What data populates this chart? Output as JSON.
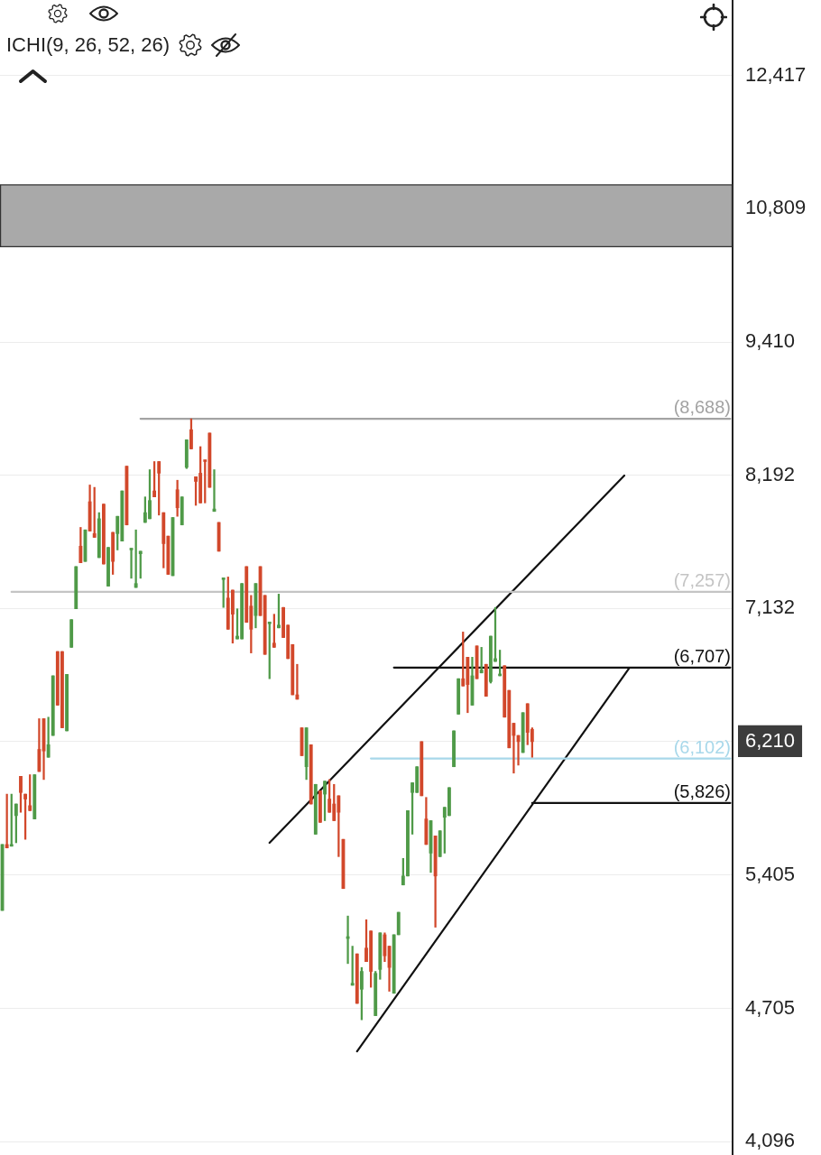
{
  "chart_data": {
    "type": "candlestick",
    "log": true,
    "grid": "y",
    "tick_labels": "y",
    "marker": "none",
    "annotations": [
      "ICHI(9, 26, 52, 26)"
    ],
    "categories": [
      null,
      null,
      null,
      null,
      null,
      null,
      null,
      null,
      null,
      null,
      null,
      null,
      null,
      null,
      null,
      null,
      null,
      null,
      null,
      null,
      null,
      null,
      null,
      null,
      null,
      null,
      null,
      null,
      null,
      null,
      null,
      null,
      null,
      null,
      null,
      null,
      null,
      null,
      null,
      null,
      null,
      null,
      null,
      null,
      null,
      null,
      null,
      null,
      null,
      null,
      null,
      null,
      null,
      null,
      null,
      null,
      null,
      null,
      null,
      null,
      null,
      null,
      null,
      null,
      null,
      null,
      null,
      null,
      null,
      null,
      null,
      null,
      null,
      null,
      null,
      null,
      null,
      null,
      null,
      null,
      null,
      null,
      null,
      null,
      null,
      null,
      null,
      null,
      null,
      null,
      null,
      null,
      null,
      null,
      null,
      null,
      null,
      null,
      null,
      null,
      null,
      null,
      null,
      null,
      null,
      null,
      null,
      null,
      null,
      null,
      null,
      null,
      null,
      null,
      null,
      null,
      null,
      null,
      null,
      null,
      null,
      null,
      null,
      null,
      null,
      null,
      null,
      null,
      null,
      null,
      null,
      null,
      null,
      null,
      null,
      null,
      null,
      null,
      null,
      null,
      null,
      null,
      null,
      null,
      null,
      null,
      null,
      null,
      null,
      null,
      null,
      null,
      null,
      null,
      null,
      null,
      null,
      null,
      null
    ],
    "ohlc": [
      [
        5210,
        5580,
        5210,
        5580
      ],
      [
        5580,
        5880,
        5560,
        5560
      ],
      [
        5570,
        5880,
        5570,
        5580
      ],
      [
        5750,
        5820,
        5590,
        5820
      ],
      [
        5990,
        5990,
        5770,
        5890
      ],
      [
        5880,
        5880,
        5610,
        5850
      ],
      [
        5810,
        6000,
        5780,
        5780
      ],
      [
        5730,
        6000,
        5730,
        6000
      ],
      [
        6160,
        6360,
        6020,
        6020
      ],
      [
        6360,
        6360,
        5970,
        6150
      ],
      [
        6110,
        6370,
        6110,
        6190
      ],
      [
        6250,
        6650,
        6250,
        6650
      ],
      [
        6820,
        6820,
        6450,
        6450
      ],
      [
        6820,
        6820,
        6300,
        6300
      ],
      [
        6280,
        6660,
        6280,
        6660
      ],
      [
        6850,
        7050,
        6850,
        7050
      ],
      [
        7130,
        7450,
        7130,
        7450
      ],
      [
        7610,
        7760,
        7480,
        7480
      ],
      [
        7490,
        7740,
        7490,
        7740
      ],
      [
        7970,
        8110,
        7730,
        7730
      ],
      [
        7710,
        8090,
        7680,
        7680
      ],
      [
        7520,
        7880,
        7520,
        7830
      ],
      [
        7950,
        7950,
        7470,
        7470
      ],
      [
        7300,
        7600,
        7300,
        7600
      ],
      [
        7720,
        7720,
        7390,
        7490
      ],
      [
        7710,
        7850,
        7580,
        7850
      ],
      [
        7650,
        8060,
        7650,
        8060
      ],
      [
        8270,
        8270,
        7780,
        7780
      ],
      [
        7580,
        7590,
        7360,
        7590
      ],
      [
        7290,
        7740,
        7290,
        7320
      ],
      [
        7550,
        7570,
        7360,
        7570
      ],
      [
        7800,
        8010,
        7800,
        7880
      ],
      [
        7830,
        8240,
        7830,
        7980
      ],
      [
        8060,
        8310,
        8010,
        8010
      ],
      [
        8310,
        8310,
        7860,
        8210
      ],
      [
        7880,
        7880,
        7440,
        7630
      ],
      [
        7690,
        7690,
        7390,
        7390
      ],
      [
        7380,
        7840,
        7380,
        7840
      ],
      [
        8070,
        8150,
        7850,
        7920
      ],
      [
        7780,
        8010,
        7780,
        8010
      ],
      [
        8260,
        8500,
        8250,
        8500
      ],
      [
        8590,
        8688,
        8420,
        8420
      ],
      [
        8180,
        8180,
        7940,
        8140
      ],
      [
        8210,
        8440,
        7960,
        7960
      ],
      [
        8320,
        8320,
        7960,
        8310
      ],
      [
        8560,
        8560,
        8090,
        8090
      ],
      [
        7890,
        8240,
        7890,
        7910
      ],
      [
        7800,
        7800,
        7570,
        7570
      ],
      [
        7350,
        7360,
        7140,
        7360
      ],
      [
        7210,
        7370,
        6980,
        6980
      ],
      [
        7270,
        7270,
        6880,
        7090
      ],
      [
        6910,
        7130,
        6910,
        6930
      ],
      [
        6910,
        7320,
        6910,
        7320
      ],
      [
        7450,
        7450,
        7030,
        7030
      ],
      [
        7150,
        7230,
        6810,
        6980
      ],
      [
        7080,
        7320,
        6990,
        7320
      ],
      [
        7450,
        7450,
        7080,
        7080
      ],
      [
        7230,
        7230,
        6800,
        6800
      ],
      [
        7020,
        7030,
        6630,
        7030
      ],
      [
        6880,
        7090,
        6850,
        6850
      ],
      [
        6990,
        7240,
        6990,
        7010
      ],
      [
        7140,
        7140,
        6920,
        6920
      ],
      [
        7010,
        7010,
        6770,
        6770
      ],
      [
        6870,
        6870,
        6520,
        6520
      ],
      [
        6520,
        6730,
        6490,
        6490
      ],
      [
        6300,
        6300,
        6120,
        6120
      ],
      [
        6050,
        6300,
        5970,
        6300
      ],
      [
        6190,
        6190,
        5820,
        5820
      ],
      [
        5640,
        5940,
        5640,
        5940
      ],
      [
        5900,
        5900,
        5710,
        5710
      ],
      [
        5880,
        5960,
        5720,
        5960
      ],
      [
        5850,
        5970,
        5770,
        5770
      ],
      [
        5820,
        5940,
        5720,
        5720
      ],
      [
        5870,
        5870,
        5510,
        5770
      ],
      [
        5610,
        5610,
        5330,
        5330
      ],
      [
        5060,
        5180,
        4930,
        5070
      ],
      [
        4820,
        5020,
        4820,
        4830
      ],
      [
        4980,
        4980,
        4730,
        4730
      ],
      [
        4800,
        4910,
        4650,
        4890
      ],
      [
        5010,
        5160,
        4940,
        4940
      ],
      [
        5100,
        5100,
        4810,
        4890
      ],
      [
        4670,
        4890,
        4670,
        4880
      ],
      [
        4900,
        5090,
        4850,
        5090
      ],
      [
        5080,
        5090,
        4940,
        4970
      ],
      [
        5020,
        5020,
        4790,
        4910
      ],
      [
        4780,
        5080,
        4780,
        5080
      ],
      [
        5080,
        5200,
        5080,
        5200
      ],
      [
        5350,
        5500,
        5350,
        5400
      ],
      [
        5400,
        5780,
        5400,
        5780
      ],
      [
        5890,
        5950,
        5640,
        5950
      ],
      [
        5890,
        6050,
        5890,
        6050
      ],
      [
        6210,
        6210,
        5870,
        5870
      ],
      [
        5730,
        5860,
        5580,
        5580
      ],
      [
        5530,
        5720,
        5420,
        5720
      ],
      [
        5630,
        5630,
        5120,
        5400
      ],
      [
        5510,
        5660,
        5510,
        5660
      ],
      [
        5740,
        5800,
        5530,
        5800
      ],
      [
        5750,
        5920,
        5750,
        5920
      ],
      [
        6050,
        6280,
        6050,
        6280
      ],
      [
        6390,
        6630,
        6390,
        6630
      ],
      [
        6630,
        6960,
        6580,
        6580
      ],
      [
        6780,
        6780,
        6400,
        6590
      ],
      [
        6450,
        6780,
        6450,
        6650
      ],
      [
        6860,
        6860,
        6630,
        6630
      ],
      [
        6670,
        6850,
        6670,
        6690
      ],
      [
        6730,
        6730,
        6510,
        6510
      ],
      [
        6610,
        6930,
        6600,
        6930
      ],
      [
        6750,
        7140,
        6750,
        6770
      ],
      [
        6650,
        6830,
        6650,
        6660
      ],
      [
        6720,
        6720,
        6370,
        6370
      ],
      [
        6550,
        6550,
        6170,
        6170
      ],
      [
        6330,
        6330,
        6010,
        6250
      ],
      [
        6250,
        6250,
        6060,
        6210
      ],
      [
        6140,
        6400,
        6140,
        6400
      ],
      [
        6460,
        6460,
        6190,
        6270
      ],
      [
        6290,
        6300,
        6110,
        6210
      ],
      null,
      null,
      null,
      null,
      null,
      null,
      null,
      null,
      null,
      null,
      null,
      null,
      null,
      null,
      null,
      null,
      null,
      null,
      null,
      null,
      null,
      null,
      null,
      null,
      null,
      null,
      null,
      null,
      null,
      null,
      null,
      null,
      null,
      null,
      null,
      null,
      null,
      null,
      null,
      null,
      null,
      null,
      null
    ],
    "colors": [
      "#4f9a48",
      "#d2482b",
      "#4f9a48",
      "#4f9a48",
      "#d2482b",
      "#d2482b",
      "#d2482b",
      "#4f9a48",
      "#d2482b",
      "#d2482b",
      "#4f9a48",
      "#4f9a48",
      "#d2482b",
      "#d2482b",
      "#4f9a48",
      "#4f9a48",
      "#4f9a48",
      "#d2482b",
      "#4f9a48",
      "#d2482b",
      "#d2482b",
      "#4f9a48",
      "#d2482b",
      "#4f9a48",
      "#d2482b",
      "#4f9a48",
      "#4f9a48",
      "#d2482b",
      "#4f9a48",
      "#4f9a48",
      "#4f9a48",
      "#4f9a48",
      "#4f9a48",
      "#d2482b",
      "#d2482b",
      "#d2482b",
      "#d2482b",
      "#4f9a48",
      "#d2482b",
      "#4f9a48",
      "#4f9a48",
      "#d2482b",
      "#d2482b",
      "#d2482b",
      "#d2482b",
      "#d2482b",
      "#4f9a48",
      "#d2482b",
      "#4f9a48",
      "#d2482b",
      "#d2482b",
      "#4f9a48",
      "#4f9a48",
      "#d2482b",
      "#d2482b",
      "#4f9a48",
      "#d2482b",
      "#d2482b",
      "#4f9a48",
      "#d2482b",
      "#4f9a48",
      "#d2482b",
      "#d2482b",
      "#d2482b",
      "#d2482b",
      "#d2482b",
      "#4f9a48",
      "#d2482b",
      "#4f9a48",
      "#d2482b",
      "#4f9a48",
      "#d2482b",
      "#d2482b",
      "#d2482b",
      "#d2482b",
      "#4f9a48",
      "#4f9a48",
      "#d2482b",
      "#4f9a48",
      "#d2482b",
      "#d2482b",
      "#4f9a48",
      "#4f9a48",
      "#d2482b",
      "#d2482b",
      "#4f9a48",
      "#4f9a48",
      "#4f9a48",
      "#4f9a48",
      "#4f9a48",
      "#4f9a48",
      "#d2482b",
      "#d2482b",
      "#4f9a48",
      "#d2482b",
      "#4f9a48",
      "#4f9a48",
      "#4f9a48",
      "#4f9a48",
      "#4f9a48",
      "#d2482b",
      "#d2482b",
      "#4f9a48",
      "#d2482b",
      "#4f9a48",
      "#d2482b",
      "#4f9a48",
      "#4f9a48",
      "#4f9a48",
      "#d2482b",
      "#d2482b",
      "#d2482b",
      "#d2482b",
      "#4f9a48",
      "#d2482b",
      "#d2482b",
      null,
      null,
      null,
      null,
      null,
      null,
      null,
      null,
      null,
      null,
      null,
      null,
      null,
      null,
      null,
      null,
      null,
      null,
      null,
      null,
      null,
      null,
      null,
      null,
      null,
      null,
      null,
      null,
      null,
      null,
      null,
      null,
      null,
      null,
      null,
      null,
      null,
      null,
      null,
      null,
      null,
      null,
      null
    ],
    "series": [
      {
        "type": "line",
        "name": "(8,688)",
        "color": "#a3a3a3",
        "values": [
          null,
          null,
          null,
          null,
          null,
          null,
          null,
          null,
          null,
          null,
          null,
          null,
          null,
          null,
          null,
          null,
          null,
          null,
          null,
          null,
          null,
          null,
          null,
          null,
          null,
          null,
          null,
          null,
          null,
          null,
          8688,
          null,
          null,
          null,
          null,
          null,
          null,
          null,
          null,
          null,
          null,
          null,
          null,
          null,
          null,
          null,
          null,
          null,
          null,
          null,
          null,
          null,
          null,
          null,
          null,
          null,
          null,
          null,
          null,
          null,
          null,
          null,
          null,
          null,
          null,
          null,
          null,
          null,
          null,
          null,
          null,
          null,
          null,
          null,
          null,
          null,
          null,
          null,
          null,
          null,
          null,
          null,
          null,
          null,
          null,
          null,
          null,
          null,
          null,
          null,
          null,
          null,
          null,
          null,
          null,
          null,
          null,
          null,
          null,
          null,
          null,
          null,
          null,
          null,
          null,
          null,
          null,
          null,
          null,
          null,
          null,
          null,
          null,
          null,
          null,
          null,
          null,
          null,
          null,
          null,
          null,
          null,
          null,
          null,
          null,
          null,
          null,
          null,
          null,
          null,
          null,
          null,
          null,
          null,
          null,
          null,
          null,
          null,
          null,
          null,
          null,
          null,
          null,
          null,
          null,
          null,
          null,
          null,
          null,
          null,
          null,
          null,
          null,
          null,
          null,
          null,
          null,
          null,
          8688
        ]
      },
      {
        "type": "line",
        "name": "(7,257)",
        "color": "#c4c4c4",
        "values": [
          null,
          null,
          7257,
          null,
          null,
          null,
          null,
          null,
          null,
          null,
          null,
          null,
          null,
          null,
          null,
          null,
          null,
          null,
          null,
          null,
          null,
          null,
          null,
          null,
          null,
          null,
          null,
          null,
          null,
          null,
          null,
          null,
          null,
          null,
          null,
          null,
          null,
          null,
          null,
          null,
          null,
          null,
          null,
          null,
          null,
          null,
          null,
          null,
          null,
          null,
          null,
          null,
          null,
          null,
          null,
          null,
          null,
          null,
          null,
          null,
          null,
          null,
          null,
          null,
          null,
          null,
          null,
          null,
          null,
          null,
          null,
          null,
          null,
          null,
          null,
          null,
          null,
          null,
          null,
          null,
          null,
          null,
          null,
          null,
          null,
          null,
          null,
          null,
          null,
          null,
          null,
          null,
          null,
          null,
          null,
          null,
          null,
          null,
          null,
          null,
          null,
          null,
          null,
          null,
          null,
          null,
          null,
          null,
          null,
          null,
          null,
          null,
          null,
          null,
          null,
          null,
          null,
          null,
          null,
          null,
          null,
          null,
          null,
          null,
          null,
          null,
          null,
          null,
          null,
          null,
          null,
          null,
          null,
          null,
          null,
          null,
          null,
          null,
          null,
          null,
          null,
          null,
          null,
          null,
          null,
          null,
          null,
          null,
          null,
          null,
          null,
          null,
          null,
          null,
          null,
          null,
          null,
          null,
          7257
        ]
      },
      {
        "type": "line",
        "name": "(6,707)",
        "color": "#111111",
        "values": [
          null,
          null,
          null,
          null,
          null,
          null,
          null,
          null,
          null,
          null,
          null,
          null,
          null,
          null,
          null,
          null,
          null,
          null,
          null,
          null,
          null,
          null,
          null,
          null,
          null,
          null,
          null,
          null,
          null,
          null,
          null,
          null,
          null,
          null,
          null,
          null,
          null,
          null,
          null,
          null,
          null,
          null,
          null,
          null,
          null,
          null,
          null,
          null,
          null,
          null,
          null,
          null,
          null,
          null,
          null,
          null,
          null,
          null,
          null,
          null,
          null,
          null,
          null,
          null,
          null,
          null,
          null,
          null,
          null,
          null,
          null,
          null,
          null,
          null,
          null,
          null,
          null,
          null,
          null,
          null,
          null,
          null,
          null,
          null,
          null,
          6707,
          null,
          null,
          null,
          null,
          null,
          null,
          null,
          null,
          null,
          null,
          null,
          null,
          null,
          null,
          null,
          null,
          null,
          null,
          null,
          null,
          null,
          null,
          null,
          null,
          null,
          null,
          null,
          null,
          null,
          null,
          null,
          null,
          null,
          null,
          null,
          null,
          null,
          null,
          null,
          null,
          null,
          null,
          null,
          null,
          null,
          null,
          null,
          null,
          null,
          null,
          null,
          null,
          null,
          null,
          null,
          null,
          null,
          null,
          null,
          null,
          null,
          null,
          null,
          null,
          null,
          null,
          null,
          null,
          null,
          null,
          null,
          null,
          6707
        ]
      },
      {
        "type": "line",
        "name": "(6,102)",
        "color": "#a8d8ea",
        "values": [
          null,
          null,
          null,
          null,
          null,
          null,
          null,
          null,
          null,
          null,
          null,
          null,
          null,
          null,
          null,
          null,
          null,
          null,
          null,
          null,
          null,
          null,
          null,
          null,
          null,
          null,
          null,
          null,
          null,
          null,
          null,
          null,
          null,
          null,
          null,
          null,
          null,
          null,
          null,
          null,
          null,
          null,
          null,
          null,
          null,
          null,
          null,
          null,
          null,
          null,
          null,
          null,
          null,
          null,
          null,
          null,
          null,
          null,
          null,
          null,
          null,
          null,
          null,
          null,
          null,
          null,
          null,
          null,
          null,
          null,
          null,
          null,
          null,
          null,
          null,
          null,
          null,
          null,
          null,
          null,
          6102,
          null,
          null,
          null,
          null,
          null,
          null,
          null,
          null,
          null,
          null,
          null,
          null,
          null,
          null,
          null,
          null,
          null,
          null,
          null,
          null,
          null,
          null,
          null,
          null,
          null,
          null,
          null,
          null,
          null,
          null,
          null,
          null,
          null,
          null,
          null,
          null,
          null,
          null,
          null,
          null,
          null,
          null,
          null,
          null,
          null,
          null,
          null,
          null,
          null,
          null,
          null,
          null,
          null,
          null,
          null,
          null,
          null,
          null,
          null,
          null,
          null,
          null,
          null,
          null,
          null,
          null,
          null,
          null,
          null,
          null,
          null,
          null,
          null,
          null,
          null,
          null,
          null,
          6102
        ]
      },
      {
        "type": "line",
        "name": "(5,826)",
        "color": "#111111",
        "values": [
          null,
          null,
          null,
          null,
          null,
          null,
          null,
          null,
          null,
          null,
          null,
          null,
          null,
          null,
          null,
          null,
          null,
          null,
          null,
          null,
          null,
          null,
          null,
          null,
          null,
          null,
          null,
          null,
          null,
          null,
          null,
          null,
          null,
          null,
          null,
          null,
          null,
          null,
          null,
          null,
          null,
          null,
          null,
          null,
          null,
          null,
          null,
          null,
          null,
          null,
          null,
          null,
          null,
          null,
          null,
          null,
          null,
          null,
          null,
          null,
          null,
          null,
          null,
          null,
          null,
          null,
          null,
          null,
          null,
          null,
          null,
          null,
          null,
          null,
          null,
          null,
          null,
          null,
          null,
          null,
          null,
          null,
          null,
          null,
          null,
          null,
          null,
          null,
          null,
          null,
          null,
          null,
          null,
          null,
          null,
          null,
          null,
          null,
          null,
          null,
          null,
          null,
          null,
          null,
          null,
          null,
          null,
          null,
          null,
          null,
          null,
          null,
          null,
          null,
          null,
          5826,
          null,
          null,
          null,
          null,
          null,
          null,
          null,
          null,
          null,
          null,
          null,
          null,
          null,
          null,
          null,
          null,
          null,
          null,
          null,
          null,
          null,
          null,
          null,
          null,
          null,
          null,
          null,
          null,
          null,
          null,
          null,
          null,
          null,
          null,
          null,
          null,
          null,
          null,
          null,
          null,
          null,
          null,
          5826
        ]
      },
      {
        "type": "line",
        "color": "#111111",
        "values": [
          null,
          null,
          null,
          null,
          null,
          null,
          null,
          null,
          null,
          null,
          null,
          null,
          null,
          null,
          null,
          null,
          null,
          null,
          null,
          null,
          null,
          null,
          null,
          null,
          null,
          null,
          null,
          null,
          null,
          null,
          null,
          null,
          null,
          null,
          null,
          null,
          null,
          null,
          null,
          null,
          null,
          null,
          null,
          null,
          null,
          null,
          null,
          null,
          null,
          null,
          null,
          null,
          null,
          null,
          null,
          null,
          null,
          null,
          5590,
          null,
          null,
          null,
          null,
          null,
          null,
          null,
          null,
          null,
          null,
          null,
          null,
          null,
          null,
          null,
          null,
          null,
          null,
          null,
          null,
          null,
          null,
          null,
          null,
          null,
          null,
          null,
          null,
          null,
          null,
          null,
          null,
          null,
          null,
          null,
          null,
          null,
          null,
          null,
          null,
          null,
          null,
          null,
          null,
          null,
          null,
          null,
          null,
          null,
          null,
          null,
          null,
          null,
          null,
          null,
          null,
          null,
          null,
          null,
          null,
          null,
          null,
          null,
          null,
          null,
          null,
          null,
          null,
          null,
          null,
          null,
          null,
          null,
          null,
          null,
          null,
          8190,
          null,
          null,
          null,
          null,
          null,
          null,
          null,
          null,
          null,
          null,
          null,
          null,
          null,
          null,
          null,
          null,
          null,
          null,
          null,
          null,
          null,
          null,
          null
        ]
      },
      {
        "type": "line",
        "color": "#111111",
        "values": [
          null,
          null,
          null,
          null,
          null,
          null,
          null,
          null,
          null,
          null,
          null,
          null,
          null,
          null,
          null,
          null,
          null,
          null,
          null,
          null,
          null,
          null,
          null,
          null,
          null,
          null,
          null,
          null,
          null,
          null,
          null,
          null,
          null,
          null,
          null,
          null,
          null,
          null,
          null,
          null,
          null,
          null,
          null,
          null,
          null,
          null,
          null,
          null,
          null,
          null,
          null,
          null,
          null,
          null,
          null,
          null,
          null,
          null,
          null,
          null,
          null,
          null,
          null,
          null,
          null,
          null,
          null,
          null,
          null,
          null,
          null,
          null,
          null,
          null,
          null,
          null,
          null,
          4500,
          null,
          null,
          null,
          null,
          null,
          null,
          null,
          null,
          null,
          null,
          null,
          null,
          null,
          null,
          null,
          null,
          null,
          null,
          null,
          null,
          null,
          null,
          null,
          null,
          null,
          null,
          null,
          null,
          null,
          null,
          null,
          null,
          null,
          null,
          null,
          null,
          null,
          null,
          null,
          null,
          null,
          null,
          null,
          null,
          null,
          null,
          null,
          null,
          null,
          null,
          null,
          null,
          null,
          null,
          null,
          null,
          null,
          null,
          6700,
          null,
          null,
          null,
          null,
          null,
          null,
          null,
          null,
          null,
          null,
          null,
          null,
          null,
          null,
          null,
          null,
          null,
          null,
          null,
          null,
          null,
          null
        ]
      }
    ],
    "bands": [
      {
        "axis": "y",
        "from": 10390,
        "to": 11080,
        "color": "#a9a9a9"
      }
    ],
    "ylim": [
      4040,
      13430
    ],
    "yticks": [
      {
        "value": 4096,
        "label": "4,096"
      },
      {
        "value": 4705,
        "label": "4,705"
      },
      {
        "value": 5405,
        "label": "5,405"
      },
      {
        "value": 6210,
        "label": "6,210"
      },
      {
        "value": 7132,
        "label": "7,132"
      },
      {
        "value": 8192,
        "label": "8,192"
      },
      {
        "value": 9410,
        "label": "9,410"
      },
      {
        "value": 10809,
        "label": "10,809"
      },
      {
        "value": 12417,
        "label": "12,417"
      }
    ]
  }
}
